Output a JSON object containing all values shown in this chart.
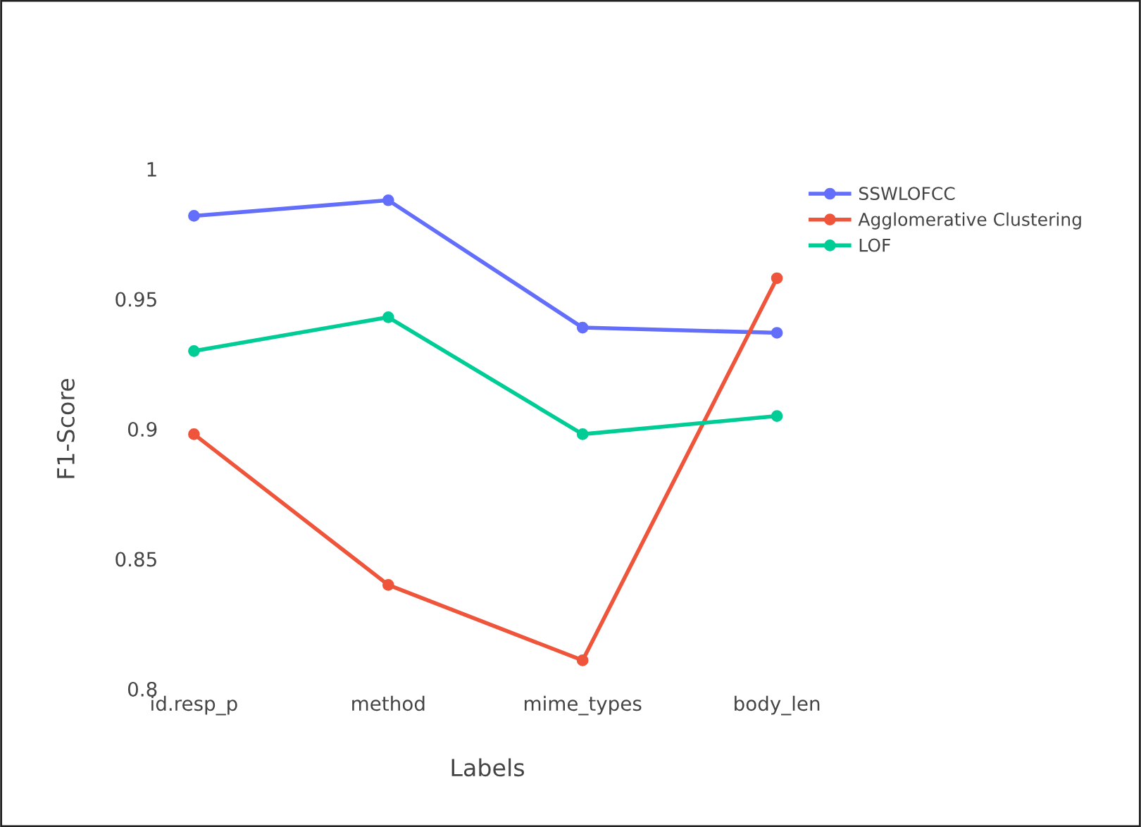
{
  "chart_data": {
    "type": "line",
    "xlabel": "Labels",
    "ylabel": "F1-Score",
    "categories": [
      "id.resp_p",
      "method",
      "mime_types",
      "body_len"
    ],
    "series": [
      {
        "name": "SSWLOFCC",
        "color": "#636efa",
        "values": [
          0.982,
          0.988,
          0.939,
          0.937
        ]
      },
      {
        "name": "Agglomerative Clustering",
        "color": "#ef553b",
        "values": [
          0.898,
          0.84,
          0.811,
          0.958
        ]
      },
      {
        "name": "LOF",
        "color": "#00cc96",
        "values": [
          0.93,
          0.943,
          0.898,
          0.905
        ]
      }
    ],
    "ylim": [
      0.8,
      1.0
    ],
    "yticks": [
      0.8,
      0.85,
      0.9,
      0.95,
      1
    ],
    "grid": false,
    "legend": "top right",
    "marker": "circle",
    "line_style": "solid"
  }
}
